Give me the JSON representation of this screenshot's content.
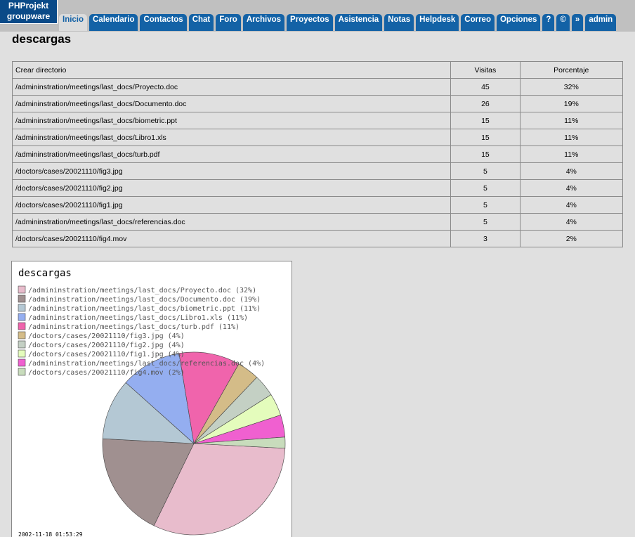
{
  "logo": [
    "PHProjekt",
    "groupware"
  ],
  "tabs": [
    "Inicio",
    "Calendario",
    "Contactos",
    "Chat",
    "Foro",
    "Archivos",
    "Proyectos",
    "Asistencia",
    "Notas",
    "Helpdesk",
    "Correo",
    "Opciones",
    "?",
    "©",
    "»",
    "admin"
  ],
  "heading": "descargas",
  "table": {
    "header": [
      "Crear directorio",
      "Visitas",
      "Porcentaje"
    ],
    "rows": [
      [
        "/admininstration/meetings/last_docs/Proyecto.doc",
        45,
        "32%"
      ],
      [
        "/admininstration/meetings/last_docs/Documento.doc",
        26,
        "19%"
      ],
      [
        "/admininstration/meetings/last_docs/biometric.ppt",
        15,
        "11%"
      ],
      [
        "/admininstration/meetings/last_docs/Libro1.xls",
        15,
        "11%"
      ],
      [
        "/admininstration/meetings/last_docs/turb.pdf",
        15,
        "11%"
      ],
      [
        "/doctors/cases/20021110/fig3.jpg",
        5,
        "4%"
      ],
      [
        "/doctors/cases/20021110/fig2.jpg",
        5,
        "4%"
      ],
      [
        "/doctors/cases/20021110/fig1.jpg",
        5,
        "4%"
      ],
      [
        "/admininstration/meetings/last_docs/referencias.doc",
        5,
        "4%"
      ],
      [
        "/doctors/cases/20021110/fig4.mov",
        3,
        "2%"
      ]
    ]
  },
  "chart_data": {
    "type": "pie",
    "title": "descargas",
    "categories": [
      "/admininstration/meetings/last_docs/Proyecto.doc",
      "/admininstration/meetings/last_docs/Documento.doc",
      "/admininstration/meetings/last_docs/biometric.ppt",
      "/admininstration/meetings/last_docs/Libro1.xls",
      "/admininstration/meetings/last_docs/turb.pdf",
      "/doctors/cases/20021110/fig3.jpg",
      "/doctors/cases/20021110/fig2.jpg",
      "/doctors/cases/20021110/fig1.jpg",
      "/admininstration/meetings/last_docs/referencias.doc",
      "/doctors/cases/20021110/fig4.mov"
    ],
    "values": [
      32,
      19,
      11,
      11,
      11,
      4,
      4,
      4,
      4,
      2
    ],
    "value_labels": [
      "(32%)",
      "(19%)",
      "(11%)",
      "(11%)",
      "(11%)",
      "(4%)",
      "(4%)",
      "(4%)",
      "(4%)",
      "(2%)"
    ],
    "colors": [
      "#e8bccc",
      "#a09090",
      "#b4c8d4",
      "#94aef0",
      "#f064ac",
      "#d4bc88",
      "#c4d0c4",
      "#e4fcbc",
      "#f060d0",
      "#c8dcbc"
    ],
    "timestamp": "2002-11-18 01:53:29"
  }
}
